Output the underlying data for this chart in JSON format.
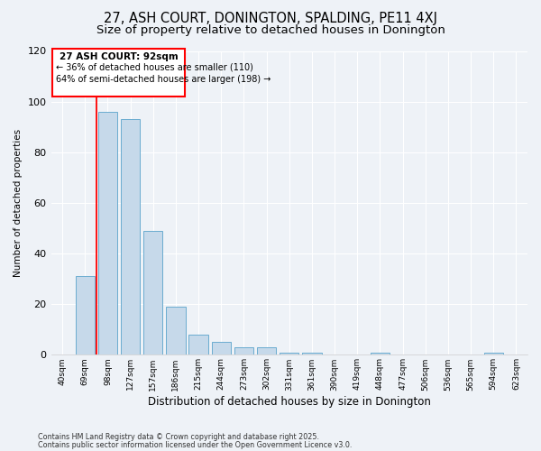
{
  "title": "27, ASH COURT, DONINGTON, SPALDING, PE11 4XJ",
  "subtitle": "Size of property relative to detached houses in Donington",
  "xlabel": "Distribution of detached houses by size in Donington",
  "ylabel": "Number of detached properties",
  "categories": [
    "40sqm",
    "69sqm",
    "98sqm",
    "127sqm",
    "157sqm",
    "186sqm",
    "215sqm",
    "244sqm",
    "273sqm",
    "302sqm",
    "331sqm",
    "361sqm",
    "390sqm",
    "419sqm",
    "448sqm",
    "477sqm",
    "506sqm",
    "536sqm",
    "565sqm",
    "594sqm",
    "623sqm"
  ],
  "values": [
    0,
    31,
    96,
    93,
    49,
    19,
    8,
    5,
    3,
    3,
    1,
    1,
    0,
    0,
    1,
    0,
    0,
    0,
    0,
    1,
    0
  ],
  "bar_color": "#c6d9ea",
  "bar_edge_color": "#6aacd0",
  "red_line_x": 1.5,
  "red_line_label": "27 ASH COURT: 92sqm",
  "annotation_line1": "← 36% of detached houses are smaller (110)",
  "annotation_line2": "64% of semi-detached houses are larger (198) →",
  "ylim": [
    0,
    120
  ],
  "yticks": [
    0,
    20,
    40,
    60,
    80,
    100,
    120
  ],
  "footnote1": "Contains HM Land Registry data © Crown copyright and database right 2025.",
  "footnote2": "Contains public sector information licensed under the Open Government Licence v3.0.",
  "title_fontsize": 10.5,
  "subtitle_fontsize": 9.5,
  "bar_width": 0.85,
  "background_color": "#eef2f7",
  "grid_color": "#ffffff",
  "font_family": "DejaVu Sans"
}
